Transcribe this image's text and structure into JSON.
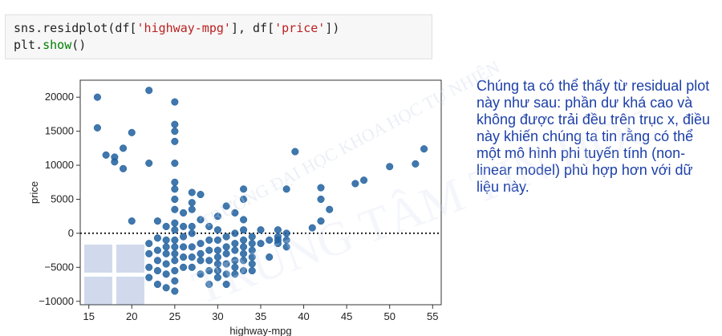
{
  "code": {
    "line1_prefix": "sns.residplot(df[",
    "line1_str1": "'highway-mpg'",
    "line1_mid": "], df[",
    "line1_str2": "'price'",
    "line1_suffix": "])",
    "line2_prefix": "plt.",
    "line2_kw": "show",
    "line2_suffix": "()"
  },
  "explanation": "Chúng ta có thể thấy từ residual plot này như sau: phần dư khá cao và không được trải đều trên trục x, điều này khiến chúng ta tin rằng có thể một mô hình phi tuyến tính (non-linear model) phù hợp hơn với dữ liệu này.",
  "watermark": {
    "arc_text": "TRƯỜNG ĐẠI HỌC KHOA HỌC TỰ NHIÊN",
    "main_text": "TRUNG TÂM TIN HỌC"
  },
  "colors": {
    "point": "#1f5f9e",
    "text_blue": "#1c3fa8",
    "zero_line": "#222222"
  },
  "chart_data": {
    "type": "scatter",
    "xlabel": "highway-mpg",
    "ylabel": "price",
    "xlim": [
      14,
      56
    ],
    "ylim": [
      -10500,
      22500
    ],
    "xticks": [
      15,
      20,
      25,
      30,
      35,
      40,
      45,
      50,
      55
    ],
    "yticks": [
      -10000,
      -5000,
      0,
      5000,
      10000,
      15000,
      20000
    ],
    "reference_line": 0,
    "points": [
      {
        "x": 16,
        "y": 20000
      },
      {
        "x": 16,
        "y": 15500
      },
      {
        "x": 17,
        "y": 11500
      },
      {
        "x": 18,
        "y": 11200
      },
      {
        "x": 18,
        "y": 10500
      },
      {
        "x": 19,
        "y": 12500
      },
      {
        "x": 19,
        "y": 9500
      },
      {
        "x": 20,
        "y": 14800
      },
      {
        "x": 20,
        "y": 1800
      },
      {
        "x": 22,
        "y": 21000
      },
      {
        "x": 22,
        "y": 10300
      },
      {
        "x": 22,
        "y": -1500
      },
      {
        "x": 22,
        "y": -3000
      },
      {
        "x": 22,
        "y": -5000
      },
      {
        "x": 22,
        "y": -6500
      },
      {
        "x": 23,
        "y": 1800
      },
      {
        "x": 23,
        "y": -700
      },
      {
        "x": 23,
        "y": -2500
      },
      {
        "x": 23,
        "y": -4000
      },
      {
        "x": 23,
        "y": -5500
      },
      {
        "x": 23,
        "y": -7500
      },
      {
        "x": 24,
        "y": 1000
      },
      {
        "x": 24,
        "y": -1000
      },
      {
        "x": 24,
        "y": -2000
      },
      {
        "x": 24,
        "y": -3000
      },
      {
        "x": 24,
        "y": -4500
      },
      {
        "x": 24,
        "y": -6000
      },
      {
        "x": 24,
        "y": -8000
      },
      {
        "x": 25,
        "y": 19300
      },
      {
        "x": 25,
        "y": 16000
      },
      {
        "x": 25,
        "y": 15000
      },
      {
        "x": 25,
        "y": 13500
      },
      {
        "x": 25,
        "y": 10300
      },
      {
        "x": 25,
        "y": 7500
      },
      {
        "x": 25,
        "y": 6500
      },
      {
        "x": 25,
        "y": 5000
      },
      {
        "x": 25,
        "y": 3500
      },
      {
        "x": 25,
        "y": 1500
      },
      {
        "x": 25,
        "y": 500
      },
      {
        "x": 25,
        "y": -1000
      },
      {
        "x": 25,
        "y": -2000
      },
      {
        "x": 25,
        "y": -3000
      },
      {
        "x": 25,
        "y": -4000
      },
      {
        "x": 25,
        "y": -5500
      },
      {
        "x": 25,
        "y": -7000
      },
      {
        "x": 25,
        "y": -8500
      },
      {
        "x": 26,
        "y": 3000
      },
      {
        "x": 26,
        "y": 1000
      },
      {
        "x": 26,
        "y": -500
      },
      {
        "x": 26,
        "y": -2000
      },
      {
        "x": 26,
        "y": -3500
      },
      {
        "x": 26,
        "y": -5000
      },
      {
        "x": 27,
        "y": 6000
      },
      {
        "x": 27,
        "y": 4500
      },
      {
        "x": 27,
        "y": 3500
      },
      {
        "x": 27,
        "y": 1000
      },
      {
        "x": 27,
        "y": 0
      },
      {
        "x": 27,
        "y": -2000
      },
      {
        "x": 27,
        "y": -3500
      },
      {
        "x": 27,
        "y": -5000
      },
      {
        "x": 28,
        "y": 5700
      },
      {
        "x": 28,
        "y": 2000
      },
      {
        "x": 28,
        "y": -1500
      },
      {
        "x": 28,
        "y": -3000
      },
      {
        "x": 28,
        "y": -4000
      },
      {
        "x": 28,
        "y": -6000
      },
      {
        "x": 29,
        "y": 1000
      },
      {
        "x": 29,
        "y": -1000
      },
      {
        "x": 29,
        "y": -2500
      },
      {
        "x": 29,
        "y": -4000
      },
      {
        "x": 29,
        "y": -5500
      },
      {
        "x": 29,
        "y": -7500
      },
      {
        "x": 30,
        "y": 2500
      },
      {
        "x": 30,
        "y": 500
      },
      {
        "x": 30,
        "y": -1000
      },
      {
        "x": 30,
        "y": -2500
      },
      {
        "x": 30,
        "y": -3500
      },
      {
        "x": 30,
        "y": -4500
      },
      {
        "x": 30,
        "y": -5500
      },
      {
        "x": 30,
        "y": -6500
      },
      {
        "x": 31,
        "y": 4000
      },
      {
        "x": 31,
        "y": -500
      },
      {
        "x": 31,
        "y": -2000
      },
      {
        "x": 31,
        "y": -3000
      },
      {
        "x": 31,
        "y": -4500
      },
      {
        "x": 31,
        "y": -6000
      },
      {
        "x": 31,
        "y": -7500
      },
      {
        "x": 32,
        "y": 3000
      },
      {
        "x": 32,
        "y": 0
      },
      {
        "x": 32,
        "y": -1500
      },
      {
        "x": 32,
        "y": -2500
      },
      {
        "x": 32,
        "y": -4000
      },
      {
        "x": 32,
        "y": -5000
      },
      {
        "x": 32,
        "y": -6000
      },
      {
        "x": 33,
        "y": 6500
      },
      {
        "x": 33,
        "y": 5000
      },
      {
        "x": 33,
        "y": 2000
      },
      {
        "x": 33,
        "y": 500
      },
      {
        "x": 33,
        "y": -1000
      },
      {
        "x": 33,
        "y": -2000
      },
      {
        "x": 33,
        "y": -3000
      },
      {
        "x": 33,
        "y": -4000
      },
      {
        "x": 33,
        "y": -5500
      },
      {
        "x": 34,
        "y": -500
      },
      {
        "x": 34,
        "y": -1500
      },
      {
        "x": 34,
        "y": -2500
      },
      {
        "x": 34,
        "y": -3500
      },
      {
        "x": 34,
        "y": -4500
      },
      {
        "x": 34,
        "y": -5500
      },
      {
        "x": 35,
        "y": 500
      },
      {
        "x": 35,
        "y": -1500
      },
      {
        "x": 36,
        "y": -3500
      },
      {
        "x": 36,
        "y": -1000
      },
      {
        "x": 37,
        "y": 500
      },
      {
        "x": 37,
        "y": -500
      },
      {
        "x": 37,
        "y": -1000
      },
      {
        "x": 37,
        "y": -1500
      },
      {
        "x": 38,
        "y": 6500
      },
      {
        "x": 38,
        "y": 0
      },
      {
        "x": 38,
        "y": -1000
      },
      {
        "x": 38,
        "y": -2000
      },
      {
        "x": 39,
        "y": 12000
      },
      {
        "x": 41,
        "y": 800
      },
      {
        "x": 42,
        "y": 6700
      },
      {
        "x": 42,
        "y": 5000
      },
      {
        "x": 42,
        "y": 1800
      },
      {
        "x": 43,
        "y": 3500
      },
      {
        "x": 46,
        "y": 7300
      },
      {
        "x": 47,
        "y": 7800
      },
      {
        "x": 50,
        "y": 9800
      },
      {
        "x": 53,
        "y": 10200
      },
      {
        "x": 54,
        "y": 12400
      }
    ]
  }
}
